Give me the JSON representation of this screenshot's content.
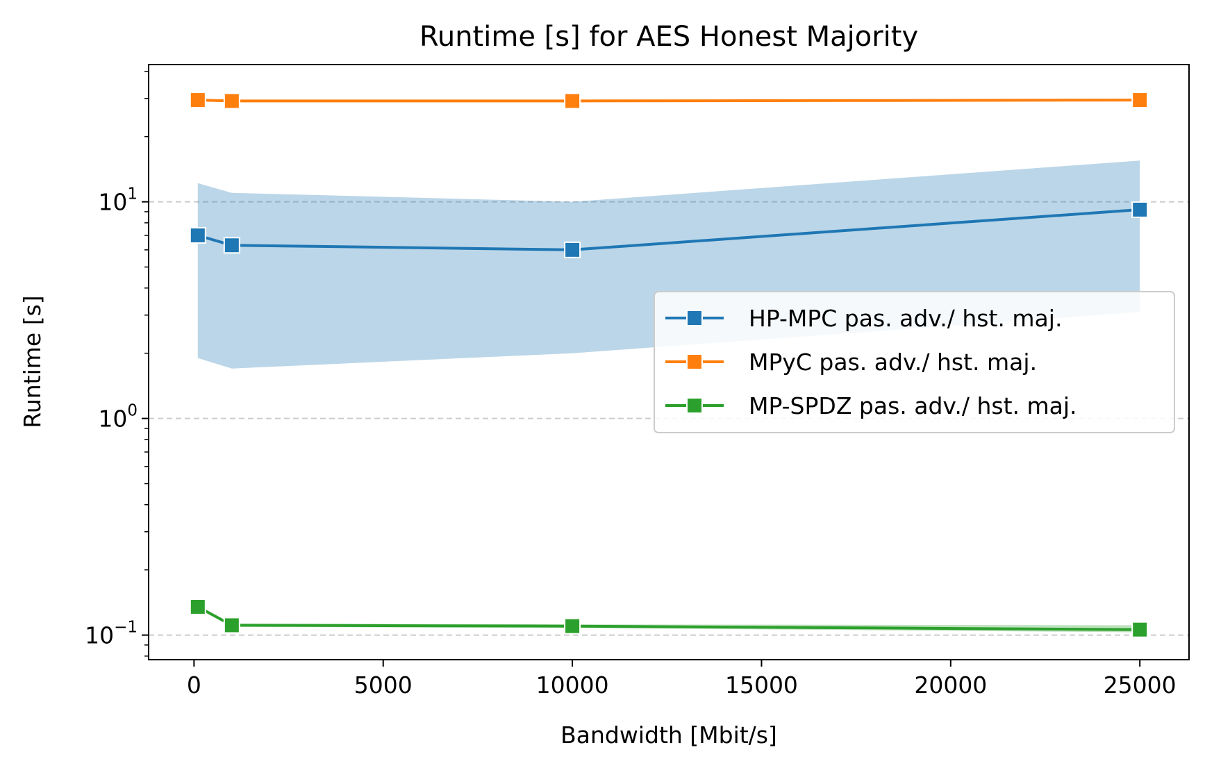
{
  "chart_data": {
    "type": "line",
    "title": "Runtime [s] for AES Honest Majority",
    "xlabel": "Bandwidth [Mbit/s]",
    "ylabel": "Runtime [s]",
    "xscale": "linear",
    "yscale": "log",
    "xlim": [
      -1200,
      26300
    ],
    "ylim": [
      0.077,
      43
    ],
    "x_ticks": [
      0,
      5000,
      10000,
      15000,
      20000,
      25000
    ],
    "x_tick_labels": [
      "0",
      "5000",
      "10000",
      "15000",
      "20000",
      "25000"
    ],
    "y_major_ticks": [
      0.1,
      1,
      10
    ],
    "y_tick_labels": [
      {
        "base": "10",
        "exp": "−1"
      },
      {
        "base": "10",
        "exp": "0"
      },
      {
        "base": "10",
        "exp": "1"
      }
    ],
    "grid": "horizontal dashed at major y ticks",
    "legend_position": "center-right",
    "marker": "square",
    "series": [
      {
        "name": "HP-MPC pas. adv./ hst. maj.",
        "color": "#1f77b4",
        "x": [
          100,
          1000,
          10000,
          25000
        ],
        "y": [
          7.0,
          6.3,
          6.0,
          9.2
        ],
        "band_lower": [
          1.9,
          1.7,
          2.0,
          3.1
        ],
        "band_upper": [
          12.2,
          11.0,
          10.0,
          15.5
        ]
      },
      {
        "name": "MPyC pas. adv./ hst. maj.",
        "color": "#ff7f0e",
        "x": [
          100,
          1000,
          10000,
          25000
        ],
        "y": [
          29.5,
          29.2,
          29.2,
          29.5
        ],
        "band_lower": [
          29.2,
          29.0,
          29.0,
          29.2
        ],
        "band_upper": [
          29.8,
          29.5,
          29.5,
          29.8
        ]
      },
      {
        "name": "MP-SPDZ pas. adv./ hst. maj.",
        "color": "#2ca02c",
        "x": [
          100,
          1000,
          10000,
          25000
        ],
        "y": [
          0.135,
          0.111,
          0.11,
          0.106
        ],
        "band_lower": [
          0.133,
          0.109,
          0.108,
          0.103
        ],
        "band_upper": [
          0.137,
          0.113,
          0.112,
          0.111
        ]
      }
    ]
  }
}
